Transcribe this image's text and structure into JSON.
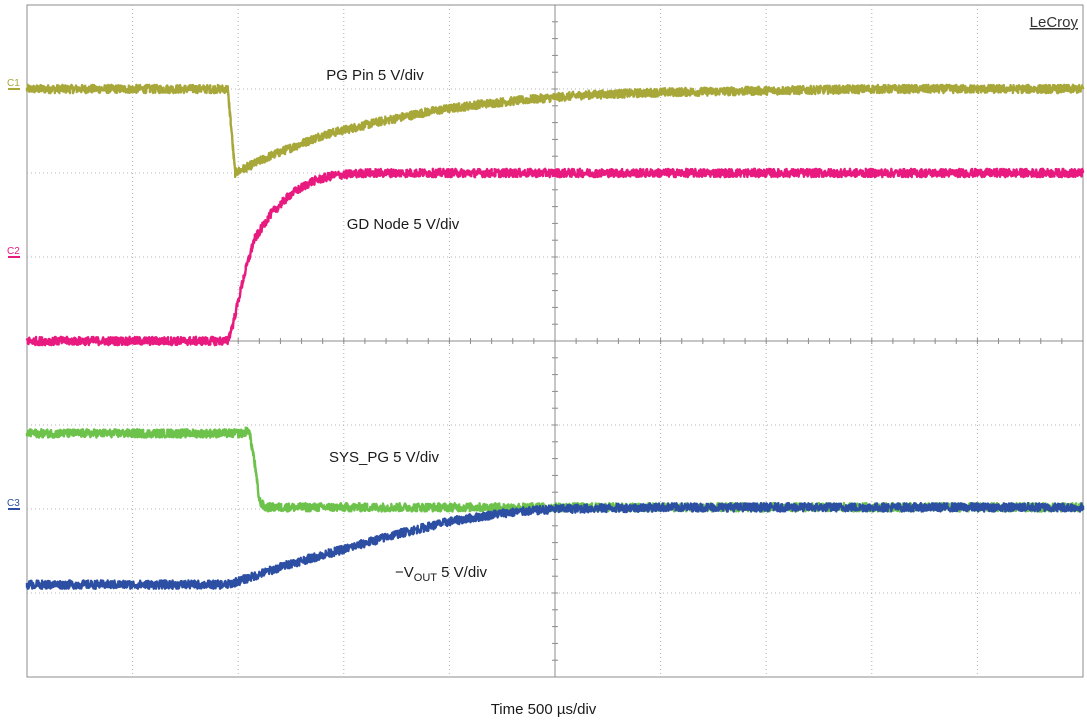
{
  "chart_data": {
    "type": "line",
    "brand": "LeCroy",
    "xlabel": "Time 500 µs/div",
    "divisions": {
      "x": 10,
      "y": 8
    },
    "xlim": [
      0,
      10
    ],
    "ylim": [
      -4,
      4
    ],
    "grid": true,
    "trace_noise_div": 0.05,
    "series": [
      {
        "key": "pg",
        "label": "PG Pin 5 V/div",
        "marker": "C1",
        "marker_level": 3,
        "color": "#a8a83a",
        "points": [
          [
            0,
            3.0
          ],
          [
            1.9,
            3.0
          ],
          [
            1.93,
            2.6
          ],
          [
            1.97,
            2.0
          ],
          [
            2.3,
            2.2
          ],
          [
            2.8,
            2.45
          ],
          [
            3.3,
            2.6
          ],
          [
            3.8,
            2.73
          ],
          [
            4.3,
            2.82
          ],
          [
            4.8,
            2.88
          ],
          [
            5.3,
            2.93
          ],
          [
            6.0,
            2.96
          ],
          [
            7.0,
            2.98
          ],
          [
            8.0,
            3.0
          ],
          [
            10,
            3.0
          ]
        ]
      },
      {
        "key": "gd",
        "label": "GD Node 5 V/div",
        "marker": "C2",
        "marker_level": 1,
        "color": "#e8197f",
        "points": [
          [
            0,
            0.0
          ],
          [
            1.9,
            0.0
          ],
          [
            1.95,
            0.2
          ],
          [
            2.05,
            0.75
          ],
          [
            2.15,
            1.2
          ],
          [
            2.3,
            1.5
          ],
          [
            2.5,
            1.75
          ],
          [
            2.7,
            1.9
          ],
          [
            2.9,
            1.97
          ],
          [
            3.2,
            2.0
          ],
          [
            10,
            2.0
          ]
        ]
      },
      {
        "key": "sys",
        "label": "SYS_PG 5 V/div",
        "marker": "",
        "marker_level": -1,
        "color": "#6cc24a",
        "points": [
          [
            0,
            -1.1
          ],
          [
            2.05,
            -1.1
          ],
          [
            2.1,
            -1.05
          ],
          [
            2.15,
            -1.4
          ],
          [
            2.2,
            -1.9
          ],
          [
            2.25,
            -1.98
          ],
          [
            10,
            -1.98
          ]
        ]
      },
      {
        "key": "vout",
        "label": "−V",
        "label_sub": "OUT",
        "label_tail": " 5 V/div",
        "marker": "C3",
        "marker_level": -2,
        "color": "#2c4fa3",
        "points": [
          [
            0,
            -2.9
          ],
          [
            1.9,
            -2.9
          ],
          [
            2.1,
            -2.82
          ],
          [
            2.5,
            -2.65
          ],
          [
            3.0,
            -2.48
          ],
          [
            3.5,
            -2.3
          ],
          [
            4.0,
            -2.15
          ],
          [
            4.5,
            -2.05
          ],
          [
            5.0,
            -2.0
          ],
          [
            6.0,
            -1.98
          ],
          [
            10,
            -1.98
          ]
        ]
      }
    ]
  }
}
